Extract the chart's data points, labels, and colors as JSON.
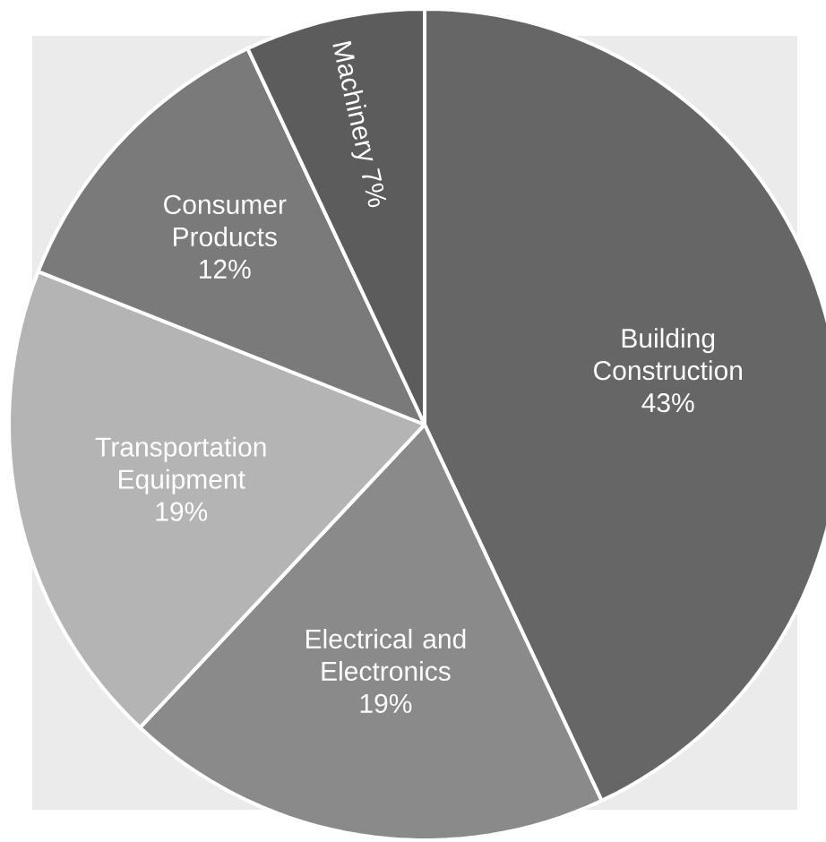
{
  "chart_data": {
    "type": "pie",
    "categories": [
      "Building Construction",
      "Electrical and Electronics",
      "Transportation Equipment",
      "Consumer Products",
      "Machinery"
    ],
    "values": [
      43,
      19,
      19,
      12,
      7
    ],
    "value_labels": [
      "43%",
      "19%",
      "19%",
      "12%",
      "7%"
    ],
    "colors": [
      "#666666",
      "#8a8a8a",
      "#b4b4b4",
      "#7a7a7a",
      "#5c5c5c"
    ]
  }
}
